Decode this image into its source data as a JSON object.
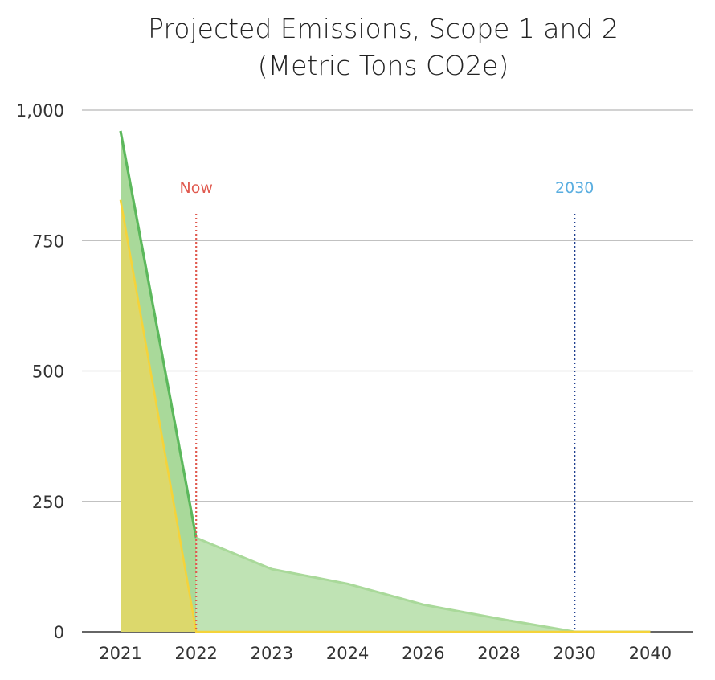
{
  "chart_data": {
    "type": "area",
    "title": "Projected Emissions, Scope 1 and 2",
    "subtitle": "(Metric Tons CO2e)",
    "categories": [
      "2021",
      "2022",
      "2023",
      "2024",
      "2026",
      "2028",
      "2030",
      "2040"
    ],
    "ylim": [
      0,
      1000
    ],
    "yticks": [
      0,
      250,
      500,
      750,
      1000
    ],
    "ytick_labels": [
      "0",
      "250",
      "500",
      "750",
      "1,000"
    ],
    "grid": true,
    "series": [
      {
        "color": "#5cb85c",
        "fill": "#a9d99a",
        "values": [
          960,
          null,
          null,
          null,
          null,
          null,
          null,
          null
        ]
      },
      {
        "color": "#a9d99a",
        "fill": "#bfe3b4",
        "values": [
          null,
          180,
          120,
          92,
          52,
          25,
          0,
          0
        ]
      },
      {
        "color": "#f5d33a",
        "fill": "#dcd86c",
        "values": [
          828,
          0,
          0,
          0,
          0,
          0,
          0,
          0
        ]
      }
    ],
    "annotations": [
      {
        "label": "Now",
        "at": "2022",
        "color": "#e05a4f"
      },
      {
        "label": "2030",
        "at": "2030",
        "color": "#5aaee0",
        "line_color": "#1f3f8f"
      }
    ]
  }
}
